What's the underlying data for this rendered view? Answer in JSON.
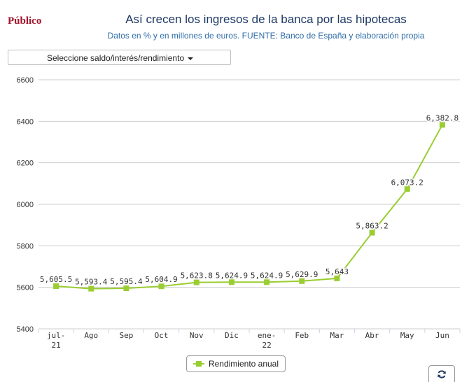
{
  "header": {
    "logo": "Público",
    "title": "Así crecen los ingresos de la banca por las hipotecas",
    "subtitle": "Datos en % y en millones de euros. FUENTE: Banco de España y elaboración propia"
  },
  "selector": {
    "label": "Seleccione saldo/interés/rendimiento"
  },
  "chart_data": {
    "type": "line",
    "title": "Así crecen los ingresos de la banca por las hipotecas",
    "subtitle": "Datos en % y en millones de euros. FUENTE: Banco de España y elaboración propia",
    "categories": [
      [
        "jul-",
        "21"
      ],
      [
        "Ago"
      ],
      [
        "Sep"
      ],
      [
        "Oct"
      ],
      [
        "Nov"
      ],
      [
        "Dic"
      ],
      [
        "ene-",
        "22"
      ],
      [
        "Feb"
      ],
      [
        "Mar"
      ],
      [
        "Abr"
      ],
      [
        "May"
      ],
      [
        "Jun"
      ]
    ],
    "series": [
      {
        "name": "Rendimiento anual",
        "color": "#9acd32",
        "values": [
          5605.5,
          5593.4,
          5595.4,
          5604.9,
          5623.8,
          5624.9,
          5624.9,
          5629.9,
          5643,
          5863.2,
          6073.2,
          6382.8
        ],
        "labels": [
          "5,605.5",
          "5,593.4",
          "5,595.4",
          "5,604.9",
          "5,623.8",
          "5,624.9",
          "5,624.9",
          "5,629.9",
          "5,643",
          "5,863.2",
          "6,073.2",
          "6,382.8"
        ]
      }
    ],
    "yticks": [
      5400,
      5600,
      5800,
      6000,
      6200,
      6400,
      6600
    ],
    "ylim": [
      5400,
      6600
    ],
    "grid": true,
    "legend": "bottom-center"
  },
  "legend": {
    "label": "Rendimiento anual"
  },
  "icons": {
    "refresh": "refresh-icon"
  }
}
